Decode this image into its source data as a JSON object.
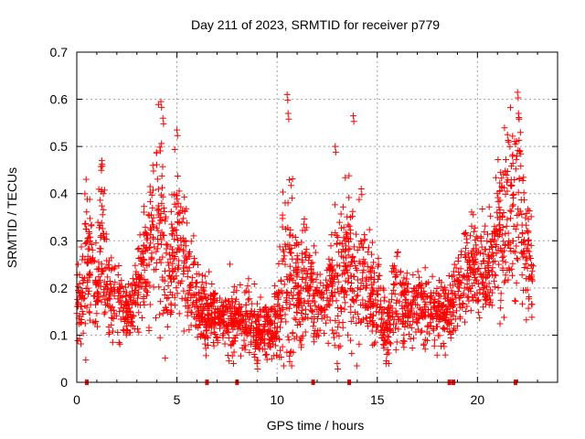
{
  "chart_data": {
    "type": "scatter",
    "title": "Day 211 of 2023, SRMTID for receiver p779",
    "xlabel": "GPS time / hours",
    "ylabel": "SRMTID / TECUs",
    "xlim": [
      0,
      24
    ],
    "ylim": [
      0,
      0.7
    ],
    "xticks": [
      0,
      5,
      10,
      15,
      20
    ],
    "yticks": [
      0,
      0.1,
      0.2,
      0.3,
      0.4,
      0.5,
      0.6,
      0.7
    ],
    "grid": true,
    "marker": "plus",
    "color": "#ff0000",
    "series": [
      {
        "name": "SRMTID",
        "profile": [
          [
            0.0,
            0.17,
            0.05
          ],
          [
            0.3,
            0.2,
            0.08
          ],
          [
            0.6,
            0.26,
            0.1
          ],
          [
            1.0,
            0.2,
            0.06
          ],
          [
            1.3,
            0.3,
            0.12
          ],
          [
            1.6,
            0.18,
            0.06
          ],
          [
            2.0,
            0.17,
            0.06
          ],
          [
            2.5,
            0.14,
            0.04
          ],
          [
            3.0,
            0.19,
            0.06
          ],
          [
            3.5,
            0.28,
            0.1
          ],
          [
            4.0,
            0.35,
            0.13
          ],
          [
            4.3,
            0.3,
            0.16
          ],
          [
            4.6,
            0.22,
            0.07
          ],
          [
            5.0,
            0.3,
            0.12
          ],
          [
            5.5,
            0.24,
            0.07
          ],
          [
            6.0,
            0.16,
            0.05
          ],
          [
            6.5,
            0.15,
            0.05
          ],
          [
            7.0,
            0.14,
            0.04
          ],
          [
            7.5,
            0.13,
            0.04
          ],
          [
            8.0,
            0.12,
            0.04
          ],
          [
            8.5,
            0.14,
            0.05
          ],
          [
            9.0,
            0.11,
            0.04
          ],
          [
            9.5,
            0.11,
            0.04
          ],
          [
            10.0,
            0.14,
            0.05
          ],
          [
            10.5,
            0.26,
            0.15
          ],
          [
            11.0,
            0.19,
            0.08
          ],
          [
            11.5,
            0.2,
            0.08
          ],
          [
            12.0,
            0.17,
            0.06
          ],
          [
            12.5,
            0.17,
            0.05
          ],
          [
            13.0,
            0.2,
            0.1
          ],
          [
            13.5,
            0.26,
            0.1
          ],
          [
            14.0,
            0.22,
            0.1
          ],
          [
            14.5,
            0.2,
            0.08
          ],
          [
            15.0,
            0.17,
            0.06
          ],
          [
            15.5,
            0.11,
            0.04
          ],
          [
            16.0,
            0.2,
            0.08
          ],
          [
            16.5,
            0.15,
            0.05
          ],
          [
            17.0,
            0.16,
            0.05
          ],
          [
            17.5,
            0.15,
            0.05
          ],
          [
            18.0,
            0.15,
            0.05
          ],
          [
            18.5,
            0.14,
            0.05
          ],
          [
            19.0,
            0.2,
            0.06
          ],
          [
            19.5,
            0.24,
            0.06
          ],
          [
            20.0,
            0.25,
            0.07
          ],
          [
            20.5,
            0.22,
            0.06
          ],
          [
            21.0,
            0.3,
            0.1
          ],
          [
            21.5,
            0.35,
            0.13
          ],
          [
            22.0,
            0.38,
            0.15
          ],
          [
            22.5,
            0.27,
            0.08
          ],
          [
            22.8,
            0.22,
            0.06
          ]
        ],
        "peaks": [
          [
            1.25,
            0.47
          ],
          [
            3.8,
            0.46
          ],
          [
            4.2,
            0.595
          ],
          [
            4.3,
            0.56
          ],
          [
            5.0,
            0.535
          ],
          [
            10.5,
            0.61
          ],
          [
            10.55,
            0.57
          ],
          [
            12.9,
            0.5
          ],
          [
            13.8,
            0.565
          ],
          [
            14.2,
            0.41
          ],
          [
            21.5,
            0.525
          ],
          [
            22.0,
            0.615
          ],
          [
            22.05,
            0.57
          ],
          [
            9.0,
            0.04
          ],
          [
            13.0,
            0.04
          ]
        ]
      }
    ],
    "gap_markers_x": [
      0.5,
      6.5,
      8.0,
      11.8,
      13.6,
      18.6,
      18.8,
      21.9
    ]
  }
}
